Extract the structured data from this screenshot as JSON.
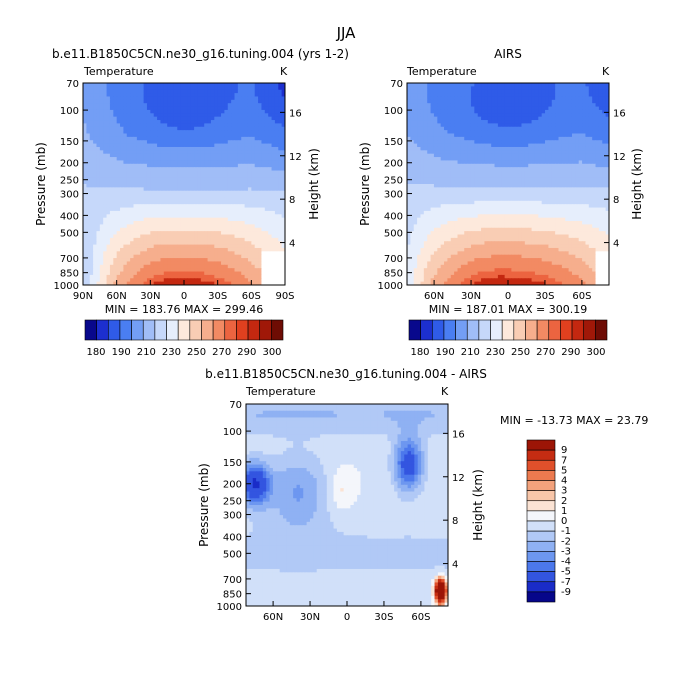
{
  "figure_title": "JJA",
  "chart_data": [
    {
      "type": "heatmap",
      "title": "b.e11.B1850C5CN.ne30_g16.tuning.004 (yrs 1-2)",
      "left_label": "Temperature",
      "right_label": "K",
      "ylabel": "Pressure (mb)",
      "y2label": "Height (km)",
      "pressure_ticks": [
        "70",
        "100",
        "150",
        "200",
        "250",
        "300",
        "400",
        "500",
        "700",
        "850",
        "1000"
      ],
      "height_ticks": [
        "16",
        "12",
        "8",
        "4"
      ],
      "x_ticks": [
        "90N",
        "60N",
        "30N",
        "0",
        "30S",
        "60S",
        "90S"
      ],
      "min_max_text": "MIN = 183.76   MAX = 299.46",
      "colorbar_labels": [
        "180",
        "190",
        "210",
        "230",
        "250",
        "270",
        "290",
        "300"
      ],
      "min": 183.76,
      "max": 299.46
    },
    {
      "type": "heatmap",
      "title": "AIRS",
      "left_label": "Temperature",
      "right_label": "K",
      "ylabel": "Pressure (mb)",
      "y2label": "Height (km)",
      "pressure_ticks": [
        "70",
        "100",
        "150",
        "200",
        "250",
        "300",
        "400",
        "500",
        "700",
        "850",
        "1000"
      ],
      "height_ticks": [
        "16",
        "12",
        "8",
        "4"
      ],
      "x_ticks": [
        "60N",
        "30N",
        "0",
        "30S",
        "60S"
      ],
      "min_max_text": "MIN = 187.01   MAX = 300.19",
      "colorbar_labels": [
        "180",
        "190",
        "210",
        "230",
        "250",
        "270",
        "290",
        "300"
      ],
      "min": 187.01,
      "max": 300.19
    },
    {
      "type": "heatmap",
      "title": "b.e11.B1850C5CN.ne30_g16.tuning.004 - AIRS",
      "left_label": "Temperature",
      "right_label": "K",
      "ylabel": "Pressure (mb)",
      "y2label": "Height (km)",
      "pressure_ticks": [
        "70",
        "100",
        "150",
        "200",
        "250",
        "300",
        "400",
        "500",
        "700",
        "850",
        "1000"
      ],
      "height_ticks": [
        "16",
        "12",
        "8",
        "4"
      ],
      "x_ticks": [
        "60N",
        "30N",
        "0",
        "30S",
        "60S"
      ],
      "min_max_text": "MIN = -13.73   MAX =  23.79",
      "colorbar_labels": [
        "9",
        "7",
        "5",
        "4",
        "3",
        "2",
        "1",
        "0",
        "-1",
        "-2",
        "-3",
        "-4",
        "-5",
        "-7",
        "-9"
      ],
      "min": -13.73,
      "max": 23.79
    }
  ],
  "colors": {
    "abs_scale": [
      "#08088c",
      "#1c2fcf",
      "#2f5be8",
      "#4a7ef2",
      "#739ef5",
      "#a0bdf7",
      "#c6d8fa",
      "#e6eefc",
      "#fde9dc",
      "#f9cdb4",
      "#f6ae8d",
      "#f28a63",
      "#ec6440",
      "#e1401f",
      "#c42810",
      "#a01808",
      "#6e0c04"
    ],
    "diff_scale": [
      "#06068a",
      "#1a2cc8",
      "#3355e0",
      "#4c78ec",
      "#6d97f0",
      "#8fb1f3",
      "#b1c9f6",
      "#d1e0f9",
      "#f4f6fb",
      "#fbe3d4",
      "#f8c6a9",
      "#f3a27c",
      "#ec7a4f",
      "#e0502b",
      "#c52c12",
      "#9c1506"
    ]
  }
}
